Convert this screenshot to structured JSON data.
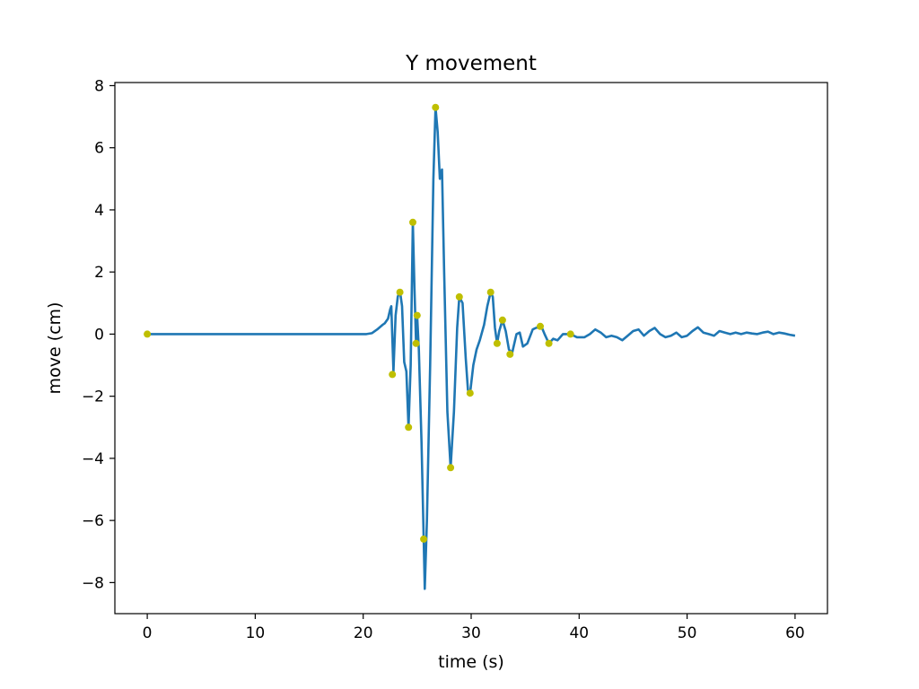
{
  "chart_data": {
    "type": "line",
    "title": "Y movement",
    "xlabel": "time (s)",
    "ylabel": "move (cm)",
    "xlim": [
      -3,
      63
    ],
    "ylim": [
      -9,
      8.1
    ],
    "xticks": [
      0,
      10,
      20,
      30,
      40,
      50,
      60
    ],
    "yticks": [
      -8,
      -6,
      -4,
      -2,
      0,
      2,
      4,
      6,
      8
    ],
    "grid": false,
    "legend": "none",
    "series": [
      {
        "kind": "line",
        "color": "#1f77b4",
        "points": [
          [
            0,
            0
          ],
          [
            20.3,
            0
          ],
          [
            20.8,
            0.03
          ],
          [
            21.3,
            0.15
          ],
          [
            21.8,
            0.3
          ],
          [
            22.0,
            0.35
          ],
          [
            22.3,
            0.5
          ],
          [
            22.5,
            0.8
          ],
          [
            22.6,
            0.9
          ],
          [
            22.8,
            -1.2
          ],
          [
            23.0,
            0.6
          ],
          [
            23.2,
            1.2
          ],
          [
            23.4,
            1.4
          ],
          [
            23.6,
            0.9
          ],
          [
            23.8,
            -0.9
          ],
          [
            24.0,
            -1.2
          ],
          [
            24.2,
            -3.0
          ],
          [
            24.4,
            -1.0
          ],
          [
            24.6,
            3.6
          ],
          [
            24.75,
            1.5
          ],
          [
            24.9,
            -0.3
          ],
          [
            25.0,
            0.6
          ],
          [
            25.15,
            -0.5
          ],
          [
            25.4,
            -3.5
          ],
          [
            25.6,
            -6.6
          ],
          [
            25.7,
            -8.2
          ],
          [
            25.9,
            -6.0
          ],
          [
            26.2,
            -1.0
          ],
          [
            26.5,
            5.0
          ],
          [
            26.7,
            7.3
          ],
          [
            26.9,
            6.5
          ],
          [
            27.1,
            5.0
          ],
          [
            27.3,
            5.3
          ],
          [
            27.5,
            2.0
          ],
          [
            27.8,
            -2.5
          ],
          [
            28.1,
            -4.3
          ],
          [
            28.4,
            -2.5
          ],
          [
            28.7,
            0.2
          ],
          [
            28.9,
            1.2
          ],
          [
            29.2,
            1.0
          ],
          [
            29.5,
            -0.8
          ],
          [
            29.7,
            -1.8
          ],
          [
            29.9,
            -1.9
          ],
          [
            30.2,
            -1.0
          ],
          [
            30.5,
            -0.5
          ],
          [
            30.8,
            -0.2
          ],
          [
            31.2,
            0.3
          ],
          [
            31.5,
            0.9
          ],
          [
            31.8,
            1.35
          ],
          [
            32.0,
            1.2
          ],
          [
            32.2,
            0.2
          ],
          [
            32.4,
            -0.3
          ],
          [
            32.6,
            0.1
          ],
          [
            32.9,
            0.45
          ],
          [
            33.2,
            0.1
          ],
          [
            33.5,
            -0.5
          ],
          [
            33.8,
            -0.6
          ],
          [
            34.2,
            0.0
          ],
          [
            34.5,
            0.05
          ],
          [
            34.8,
            -0.4
          ],
          [
            35.2,
            -0.3
          ],
          [
            35.7,
            0.15
          ],
          [
            36.0,
            0.2
          ],
          [
            36.5,
            0.25
          ],
          [
            36.8,
            0.0
          ],
          [
            37.2,
            -0.3
          ],
          [
            37.6,
            -0.15
          ],
          [
            38.0,
            -0.2
          ],
          [
            38.5,
            0.0
          ],
          [
            39.2,
            0.0
          ],
          [
            39.8,
            -0.1
          ],
          [
            40.5,
            -0.1
          ],
          [
            41.0,
            0.0
          ],
          [
            41.5,
            0.15
          ],
          [
            42.0,
            0.05
          ],
          [
            42.5,
            -0.1
          ],
          [
            43.0,
            -0.05
          ],
          [
            43.5,
            -0.1
          ],
          [
            44.0,
            -0.2
          ],
          [
            44.5,
            -0.05
          ],
          [
            45.0,
            0.1
          ],
          [
            45.5,
            0.15
          ],
          [
            46.0,
            -0.05
          ],
          [
            46.5,
            0.1
          ],
          [
            47.0,
            0.2
          ],
          [
            47.5,
            0.0
          ],
          [
            48.0,
            -0.1
          ],
          [
            48.5,
            -0.05
          ],
          [
            49.0,
            0.05
          ],
          [
            49.5,
            -0.1
          ],
          [
            50.0,
            -0.05
          ],
          [
            50.5,
            0.1
          ],
          [
            51.0,
            0.22
          ],
          [
            51.5,
            0.05
          ],
          [
            52.0,
            0.0
          ],
          [
            52.5,
            -0.05
          ],
          [
            53.0,
            0.1
          ],
          [
            53.5,
            0.05
          ],
          [
            54.0,
            0.0
          ],
          [
            54.5,
            0.05
          ],
          [
            55.0,
            0.0
          ],
          [
            55.5,
            0.05
          ],
          [
            56.0,
            0.02
          ],
          [
            56.5,
            0.0
          ],
          [
            57.0,
            0.05
          ],
          [
            57.5,
            0.08
          ],
          [
            58.0,
            0.0
          ],
          [
            58.5,
            0.05
          ],
          [
            59.0,
            0.02
          ],
          [
            59.5,
            -0.02
          ],
          [
            60.0,
            -0.05
          ]
        ]
      },
      {
        "kind": "scatter",
        "color": "#bfbf00",
        "points": [
          [
            0,
            0
          ],
          [
            22.7,
            -1.3
          ],
          [
            23.4,
            1.35
          ],
          [
            24.2,
            -3.0
          ],
          [
            24.6,
            3.6
          ],
          [
            24.9,
            -0.3
          ],
          [
            25.0,
            0.6
          ],
          [
            25.6,
            -6.6
          ],
          [
            26.7,
            7.3
          ],
          [
            28.1,
            -4.3
          ],
          [
            28.9,
            1.2
          ],
          [
            29.9,
            -1.9
          ],
          [
            31.8,
            1.35
          ],
          [
            32.4,
            -0.3
          ],
          [
            32.9,
            0.45
          ],
          [
            33.6,
            -0.65
          ],
          [
            36.4,
            0.25
          ],
          [
            37.2,
            -0.3
          ],
          [
            39.2,
            0.0
          ]
        ]
      }
    ]
  }
}
